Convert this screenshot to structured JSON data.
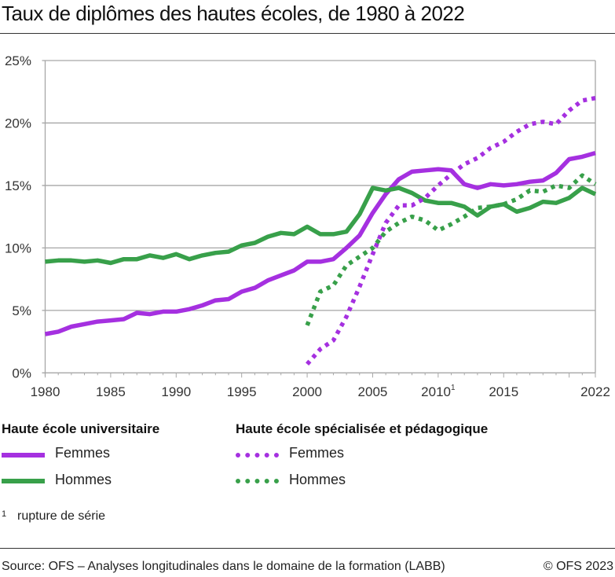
{
  "title": "Taux de diplômes des hautes écoles, de 1980 à 2022",
  "colors": {
    "femmes": "#a530e0",
    "hommes": "#38a04a",
    "grid": "#a6a6a6"
  },
  "chart_data": {
    "type": "line",
    "title": "Taux de diplômes des hautes écoles, de 1980 à 2022",
    "xlim": [
      1980,
      2022
    ],
    "ylim": [
      0,
      25
    ],
    "y_unit": "%",
    "grid": true,
    "x_ticks": [
      "1980",
      "1985",
      "1990",
      "1995",
      "2000",
      "2005",
      "2010¹",
      "2015",
      "2022"
    ],
    "x_tick_values": [
      1980,
      1985,
      1990,
      1995,
      2000,
      2005,
      2010,
      2015,
      2022
    ],
    "y_ticks": [
      "0%",
      "5%",
      "10%",
      "15%",
      "20%",
      "25%"
    ],
    "y_tick_values": [
      0,
      5,
      10,
      15,
      20,
      25
    ],
    "legend_placement": "bottom",
    "series": [
      {
        "group": "Haute école universitaire",
        "name": "Femmes",
        "color": "#a530e0",
        "style": "solid",
        "x_start": 1980,
        "values": [
          3.1,
          3.3,
          3.7,
          3.9,
          4.1,
          4.2,
          4.3,
          4.8,
          4.7,
          4.9,
          4.9,
          5.1,
          5.4,
          5.8,
          5.9,
          6.5,
          6.8,
          7.4,
          7.8,
          8.2,
          8.9,
          8.9,
          9.1,
          10.0,
          11.0,
          12.8,
          14.3,
          15.5,
          16.1,
          16.2,
          16.3,
          16.2,
          15.1,
          14.8,
          15.1,
          15.0,
          15.1,
          15.3,
          15.4,
          16.0,
          17.1,
          17.3,
          17.6
        ]
      },
      {
        "group": "Haute école universitaire",
        "name": "Hommes",
        "color": "#38a04a",
        "style": "solid",
        "x_start": 1980,
        "values": [
          8.9,
          9.0,
          9.0,
          8.9,
          9.0,
          8.8,
          9.1,
          9.1,
          9.4,
          9.2,
          9.5,
          9.1,
          9.4,
          9.6,
          9.7,
          10.2,
          10.4,
          10.9,
          11.2,
          11.1,
          11.7,
          11.1,
          11.1,
          11.3,
          12.7,
          14.8,
          14.6,
          14.8,
          14.4,
          13.8,
          13.6,
          13.6,
          13.3,
          12.6,
          13.3,
          13.5,
          12.9,
          13.2,
          13.7,
          13.6,
          14.0,
          14.8,
          14.3
        ]
      },
      {
        "group": "Haute école spécialisée et pédagogique",
        "name": "Femmes",
        "color": "#a530e0",
        "style": "dotted",
        "x_start": 2000,
        "values": [
          0.7,
          1.9,
          2.6,
          4.5,
          6.9,
          9.5,
          12.0,
          13.4,
          13.4,
          14.0,
          15.0,
          15.9,
          16.7,
          17.2,
          18.0,
          18.5,
          19.3,
          19.9,
          20.1,
          19.9,
          21.0,
          21.8,
          22.0
        ]
      },
      {
        "group": "Haute école spécialisée et pédagogique",
        "name": "Hommes",
        "color": "#38a04a",
        "style": "dotted",
        "x_start": 2000,
        "values": [
          3.8,
          6.5,
          7.0,
          8.6,
          9.3,
          10.0,
          11.3,
          12.0,
          12.5,
          12.2,
          11.4,
          11.9,
          12.5,
          13.2,
          13.3,
          13.5,
          13.9,
          14.6,
          14.5,
          15.0,
          14.8,
          15.8,
          15.1
        ]
      }
    ]
  },
  "legend": {
    "group1": "Haute école universitaire",
    "group2": "Haute école spécialisée et pédagogique",
    "femmes": "Femmes",
    "hommes": "Hommes"
  },
  "footnote": {
    "mark": "1",
    "text": "rupture de série"
  },
  "source": "Source: OFS – Analyses longitudinales dans le domaine de la formation (LABB)",
  "copyright": "© OFS 2023"
}
